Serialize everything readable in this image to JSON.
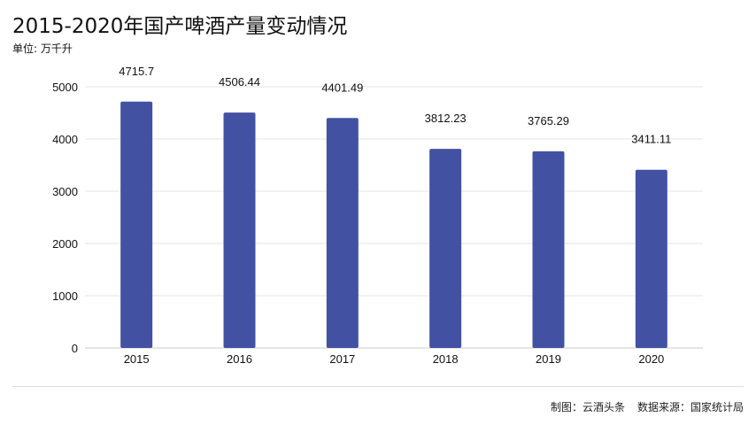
{
  "chart_data": {
    "type": "bar",
    "title": "2015-2020年国产啤酒产量变动情况",
    "unit": "单位: 万千升",
    "categories": [
      "2015",
      "2016",
      "2017",
      "2018",
      "2019",
      "2020"
    ],
    "values": [
      4715.7,
      4506.44,
      4401.49,
      3812.23,
      3765.29,
      3411.11
    ],
    "value_labels": [
      "4715.7",
      "4506.44",
      "4401.49",
      "3812.23",
      "3765.29",
      "3411.11"
    ],
    "y_ticks": [
      0,
      1000,
      2000,
      3000,
      4000,
      5000
    ],
    "ylim": [
      0,
      5000
    ],
    "grid": true,
    "bar_color": "#4351a3",
    "grid_color": "#e6e6e6"
  },
  "footer": {
    "made_by": "制图：云酒头条",
    "source": "数据来源：国家统计局"
  }
}
